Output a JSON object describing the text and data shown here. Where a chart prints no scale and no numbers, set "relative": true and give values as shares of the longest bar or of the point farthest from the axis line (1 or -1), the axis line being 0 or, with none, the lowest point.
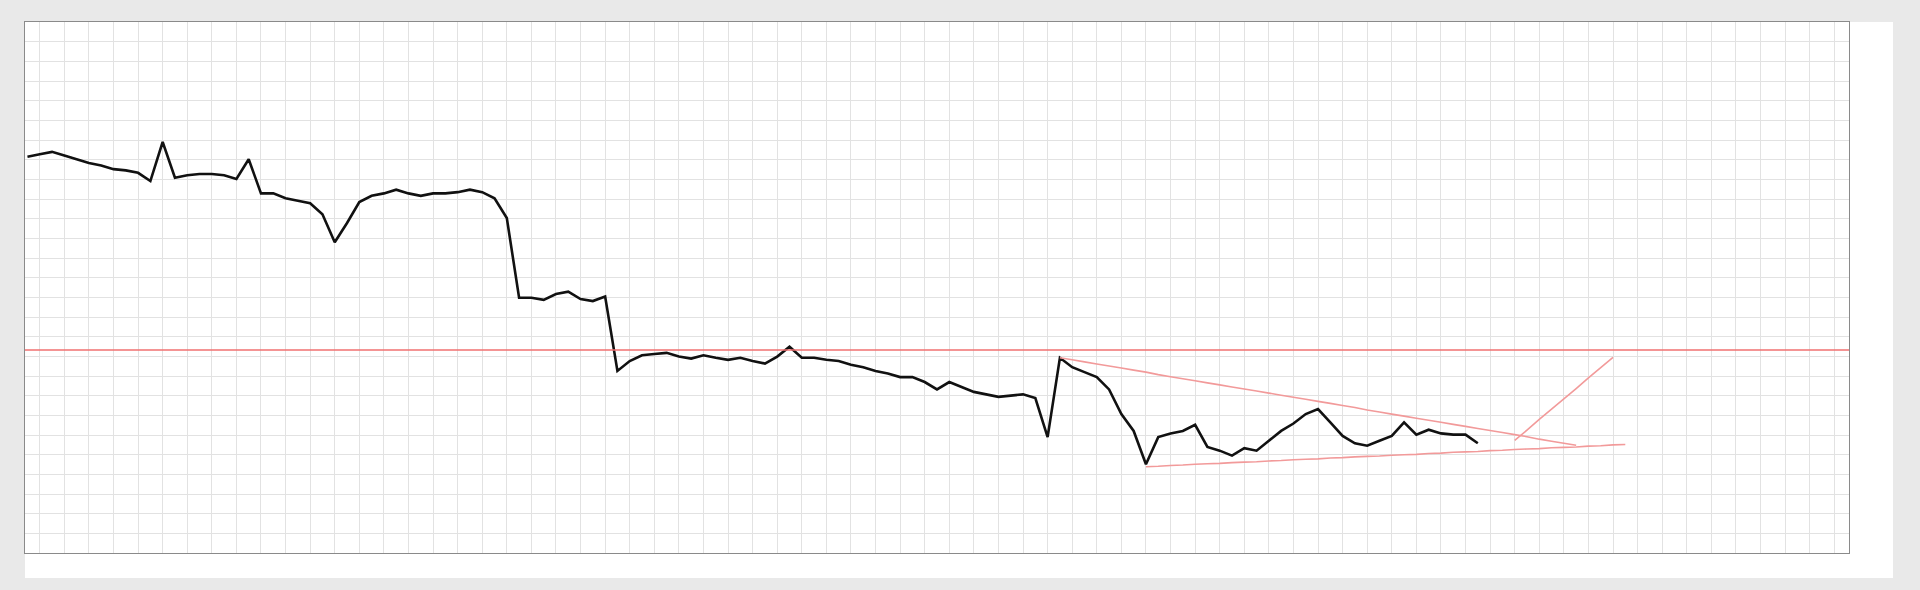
{
  "chart_data": {
    "type": "line",
    "relative": true,
    "grid": true,
    "categories": [
      null,
      null,
      null,
      null,
      null,
      null,
      null,
      null,
      null,
      null,
      null,
      null,
      null,
      null,
      null,
      null,
      null,
      null,
      null,
      null,
      null,
      null,
      null,
      null,
      null,
      null,
      null,
      null,
      null,
      null,
      null,
      null,
      null,
      null,
      null,
      null,
      null,
      null,
      null,
      null,
      null,
      null,
      null,
      null,
      null,
      null,
      null,
      null,
      null,
      null,
      null,
      null,
      null,
      null,
      null,
      null,
      null,
      null,
      null,
      null,
      null,
      null,
      null,
      null,
      null,
      null,
      null,
      null,
      null,
      null,
      null,
      null,
      null,
      null,
      null,
      null,
      null,
      null,
      null,
      null,
      null,
      null,
      null,
      null,
      null,
      null,
      null,
      null,
      null,
      null,
      null,
      null,
      null,
      null,
      null,
      null,
      null,
      null,
      null,
      null,
      null,
      null,
      null,
      null,
      null,
      null,
      null,
      null,
      null,
      null,
      null,
      null,
      null,
      null,
      null,
      null,
      null,
      null,
      null,
      null,
      null,
      null,
      null,
      null,
      null,
      null,
      null,
      null,
      null,
      null,
      null,
      null,
      null,
      null,
      null,
      null,
      null,
      null,
      null,
      null,
      null,
      null,
      null,
      null,
      null,
      null,
      null,
      null,
      null
    ],
    "series": [
      {
        "color": "#111111",
        "values": [
          0.964,
          0.97,
          0.976,
          0.967,
          0.958,
          0.949,
          0.943,
          0.934,
          0.931,
          0.925,
          0.905,
          1.0,
          0.913,
          0.919,
          0.922,
          0.922,
          0.919,
          0.91,
          0.958,
          0.875,
          0.875,
          0.863,
          0.857,
          0.851,
          0.824,
          0.756,
          0.803,
          0.854,
          0.869,
          0.875,
          0.884,
          0.875,
          0.869,
          0.875,
          0.875,
          0.878,
          0.884,
          0.878,
          0.863,
          0.815,
          0.621,
          0.621,
          0.616,
          0.63,
          0.636,
          0.618,
          0.613,
          0.624,
          0.443,
          0.467,
          0.481,
          0.484,
          0.487,
          0.478,
          0.473,
          0.481,
          0.475,
          0.47,
          0.475,
          0.467,
          0.461,
          0.478,
          0.502,
          0.475,
          0.475,
          0.47,
          0.467,
          0.458,
          0.452,
          0.443,
          0.437,
          0.428,
          0.428,
          0.416,
          0.398,
          0.416,
          0.404,
          0.392,
          0.386,
          0.38,
          0.383,
          0.386,
          0.377,
          0.282,
          0.475,
          0.452,
          0.44,
          0.428,
          0.398,
          0.338,
          0.297,
          0.216,
          0.282,
          0.291,
          0.297,
          0.312,
          0.258,
          0.249,
          0.237,
          0.255,
          0.249,
          0.273,
          0.297,
          0.315,
          0.338,
          0.35,
          0.318,
          0.285,
          0.267,
          0.261,
          0.273,
          0.285,
          0.318,
          0.288,
          0.3,
          0.291,
          0.288,
          0.288,
          0.267,
          null,
          null,
          null,
          null,
          null,
          null,
          null,
          null,
          null,
          null,
          null,
          null,
          null,
          null,
          null,
          null,
          null,
          null,
          null,
          null,
          null,
          null,
          null,
          null,
          null,
          null,
          null,
          null,
          null,
          null
        ]
      },
      {
        "color": "#f29a9a",
        "values": [
          null,
          null,
          null,
          null,
          null,
          null,
          null,
          null,
          null,
          null,
          null,
          null,
          null,
          null,
          null,
          null,
          null,
          null,
          null,
          null,
          null,
          null,
          null,
          null,
          null,
          null,
          null,
          null,
          null,
          null,
          null,
          null,
          null,
          null,
          null,
          null,
          null,
          null,
          null,
          null,
          null,
          null,
          null,
          null,
          null,
          null,
          null,
          null,
          null,
          null,
          null,
          null,
          null,
          null,
          null,
          null,
          null,
          null,
          null,
          null,
          null,
          null,
          null,
          null,
          null,
          null,
          null,
          null,
          null,
          null,
          null,
          null,
          null,
          null,
          null,
          null,
          null,
          null,
          null,
          null,
          null,
          null,
          null,
          null,
          0.475,
          0.47,
          0.465,
          0.46,
          0.455,
          0.45,
          0.445,
          0.44,
          0.434,
          0.429,
          0.424,
          0.419,
          0.414,
          0.409,
          0.404,
          0.399,
          0.394,
          0.389,
          0.384,
          0.379,
          0.374,
          0.369,
          0.364,
          0.359,
          0.354,
          0.348,
          0.343,
          0.338,
          0.333,
          0.328,
          0.323,
          0.318,
          0.313,
          0.308,
          0.303,
          0.298,
          0.293,
          0.288,
          0.283,
          0.277,
          0.272,
          0.267,
          0.262,
          null,
          null,
          null,
          null,
          null,
          null,
          null,
          null,
          null,
          null,
          null,
          null,
          null,
          null,
          null,
          null,
          null,
          null,
          null,
          null,
          null,
          null
        ]
      },
      {
        "color": "#f29a9a",
        "values": [
          null,
          null,
          null,
          null,
          null,
          null,
          null,
          null,
          null,
          null,
          null,
          null,
          null,
          null,
          null,
          null,
          null,
          null,
          null,
          null,
          null,
          null,
          null,
          null,
          null,
          null,
          null,
          null,
          null,
          null,
          null,
          null,
          null,
          null,
          null,
          null,
          null,
          null,
          null,
          null,
          null,
          null,
          null,
          null,
          null,
          null,
          null,
          null,
          null,
          null,
          null,
          null,
          null,
          null,
          null,
          null,
          null,
          null,
          null,
          null,
          null,
          null,
          null,
          null,
          null,
          null,
          null,
          null,
          null,
          null,
          null,
          null,
          null,
          null,
          null,
          null,
          null,
          null,
          null,
          null,
          null,
          null,
          null,
          null,
          null,
          null,
          null,
          null,
          null,
          null,
          null,
          0.21,
          0.211,
          0.213,
          0.214,
          0.216,
          0.217,
          0.218,
          0.22,
          0.221,
          0.222,
          0.224,
          0.225,
          0.227,
          0.228,
          0.229,
          0.231,
          0.232,
          0.234,
          0.235,
          0.236,
          0.238,
          0.239,
          0.24,
          0.242,
          0.243,
          0.245,
          0.246,
          0.247,
          0.249,
          0.25,
          0.252,
          0.253,
          0.254,
          0.256,
          0.257,
          0.258,
          0.26,
          0.261,
          0.263,
          0.264,
          null,
          null,
          null,
          null,
          null,
          null,
          null,
          null,
          null,
          null,
          null,
          null,
          null,
          null,
          null,
          null,
          null,
          null
        ]
      },
      {
        "color": "#f29a9a",
        "values": [
          null,
          null,
          null,
          null,
          null,
          null,
          null,
          null,
          null,
          null,
          null,
          null,
          null,
          null,
          null,
          null,
          null,
          null,
          null,
          null,
          null,
          null,
          null,
          null,
          null,
          null,
          null,
          null,
          null,
          null,
          null,
          null,
          null,
          null,
          null,
          null,
          null,
          null,
          null,
          null,
          null,
          null,
          null,
          null,
          null,
          null,
          null,
          null,
          null,
          null,
          null,
          null,
          null,
          null,
          null,
          null,
          null,
          null,
          null,
          null,
          null,
          null,
          null,
          null,
          null,
          null,
          null,
          null,
          null,
          null,
          null,
          null,
          null,
          null,
          null,
          null,
          null,
          null,
          null,
          null,
          null,
          null,
          null,
          null,
          null,
          null,
          null,
          null,
          null,
          null,
          null,
          null,
          null,
          null,
          null,
          null,
          null,
          null,
          null,
          null,
          null,
          null,
          null,
          null,
          null,
          null,
          null,
          null,
          null,
          null,
          null,
          null,
          null,
          null,
          null,
          null,
          null,
          null,
          null,
          null,
          null,
          0.274,
          0.299,
          0.325,
          0.35,
          0.375,
          0.4,
          0.426,
          0.451,
          0.476,
          null,
          null,
          null,
          null,
          null,
          null,
          null,
          null,
          null,
          null,
          null,
          null,
          null,
          null,
          null,
          null,
          null,
          null,
          null
        ]
      }
    ],
    "ref_lines": [
      {
        "axis": "y",
        "value": 0.494,
        "color": "#f07070"
      }
    ]
  }
}
